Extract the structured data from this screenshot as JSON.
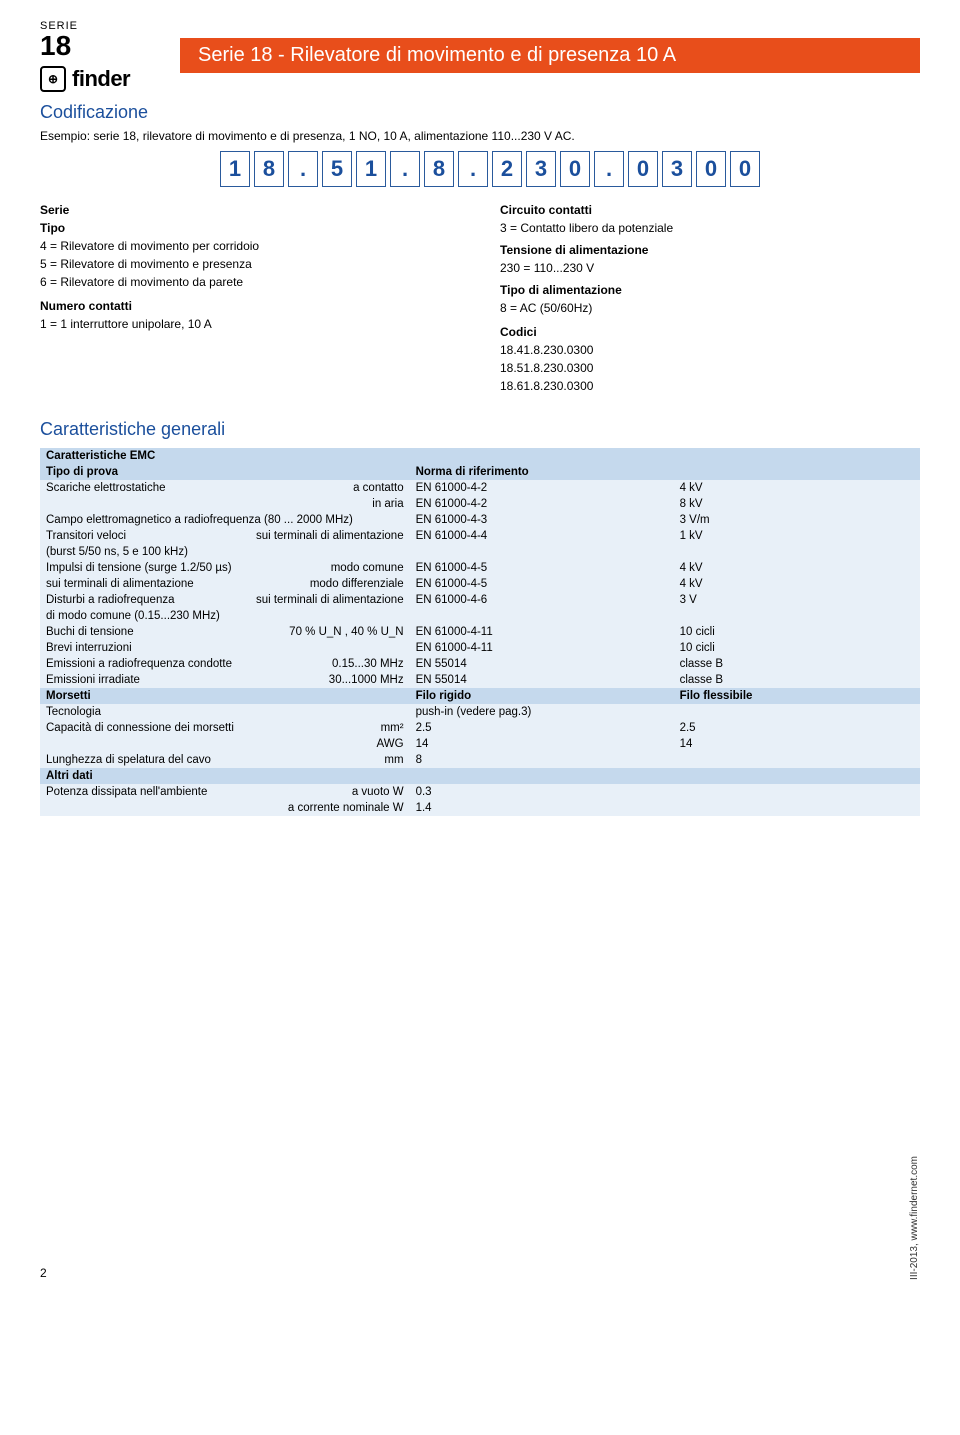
{
  "header": {
    "series_label": "SERIE",
    "series_number": "18",
    "brand": "finder",
    "title": "Serie 18 - Rilevatore di movimento e di presenza 10 A"
  },
  "coding": {
    "title": "Codificazione",
    "example": "Esempio: serie 18, rilevatore di movimento e di presenza, 1 NO, 10 A, alimentazione 110...230 V AC.",
    "code": [
      "1",
      "8",
      ".",
      "5",
      "1",
      ".",
      "8",
      ".",
      "2",
      "3",
      "0",
      ".",
      "0",
      "3",
      "0",
      "0"
    ],
    "left": {
      "serie_label": "Serie",
      "tipo_label": "Tipo",
      "tipo_lines": [
        "4 = Rilevatore di movimento per corridoio",
        "5 = Rilevatore di movimento e presenza",
        "6 = Rilevatore di movimento da parete"
      ],
      "numero_label": "Numero contatti",
      "numero_line": "1 = 1 interruttore unipolare, 10 A"
    },
    "right": {
      "circuito_label": "Circuito contatti",
      "circuito_line": "3 = Contatto libero da potenziale",
      "tensione_label": "Tensione di alimentazione",
      "tensione_line": "230 = 110...230 V",
      "tipoal_label": "Tipo di alimentazione",
      "tipoal_line": "8 = AC (50/60Hz)",
      "codici_label": "Codici",
      "codici": [
        "18.41.8.230.0300",
        "18.51.8.230.0300",
        "18.61.8.230.0300"
      ]
    }
  },
  "characteristics": {
    "title": "Caratteristiche generali",
    "emc_header": "Caratteristiche EMC",
    "tipo_prova": "Tipo di prova",
    "norma": "Norma di riferimento",
    "rows_emc": [
      [
        "Scariche elettrostatiche",
        "a contatto",
        "EN 61000-4-2",
        "4 kV"
      ],
      [
        "",
        "in aria",
        "EN 61000-4-2",
        "8 kV"
      ],
      [
        "Campo elettromagnetico a radiofrequenza (80 ... 2000 MHz)",
        "",
        "EN 61000-4-3",
        "3 V/m"
      ],
      [
        "Transitori veloci",
        "sui terminali di alimentazione",
        "EN 61000-4-4",
        "1 kV"
      ],
      [
        "(burst 5/50 ns, 5 e 100 kHz)",
        "",
        "",
        ""
      ],
      [
        "Impulsi di tensione (surge 1.2/50 µs)",
        "modo comune",
        "EN 61000-4-5",
        "4 kV"
      ],
      [
        "sui terminali di alimentazione",
        "modo differenziale",
        "EN 61000-4-5",
        "4 kV"
      ],
      [
        "Disturbi a radiofrequenza",
        "sui terminali di alimentazione",
        "EN 61000-4-6",
        "3 V"
      ],
      [
        "di modo comune (0.15...230 MHz)",
        "",
        "",
        ""
      ],
      [
        "Buchi di tensione",
        "70 % U_N , 40 % U_N",
        "EN 61000-4-11",
        "10 cicli"
      ],
      [
        "Brevi interruzioni",
        "",
        "EN 61000-4-11",
        "10 cicli"
      ],
      [
        "Emissioni a radiofrequenza condotte",
        "0.15...30 MHz",
        "EN 55014",
        "classe B"
      ],
      [
        "Emissioni irradiate",
        "30...1000 MHz",
        "EN 55014",
        "classe B"
      ]
    ],
    "morsetti_header": [
      "Morsetti",
      "Filo rigido",
      "Filo flessibile"
    ],
    "rows_morsetti": [
      [
        "Tecnologia",
        "",
        "push-in (vedere pag.3)",
        ""
      ],
      [
        "Capacità di connessione dei morsetti",
        "mm²",
        "2.5",
        "2.5"
      ],
      [
        "",
        "AWG",
        "14",
        "14"
      ],
      [
        "Lunghezza di spelatura del cavo",
        "mm",
        "8",
        ""
      ]
    ],
    "altri_header": "Altri dati",
    "rows_altri": [
      [
        "Potenza dissipata nell'ambiente",
        "a vuoto W",
        "0.3",
        ""
      ],
      [
        "",
        "a corrente nominale W",
        "1.4",
        ""
      ]
    ]
  },
  "footer": {
    "page": "2",
    "meta": "III-2013, www.findernet.com"
  },
  "colors": {
    "accent_orange": "#e84e1b",
    "accent_blue": "#1b4f9c",
    "row_light": "#e8f0f8",
    "row_header": "#c5d9ed"
  }
}
